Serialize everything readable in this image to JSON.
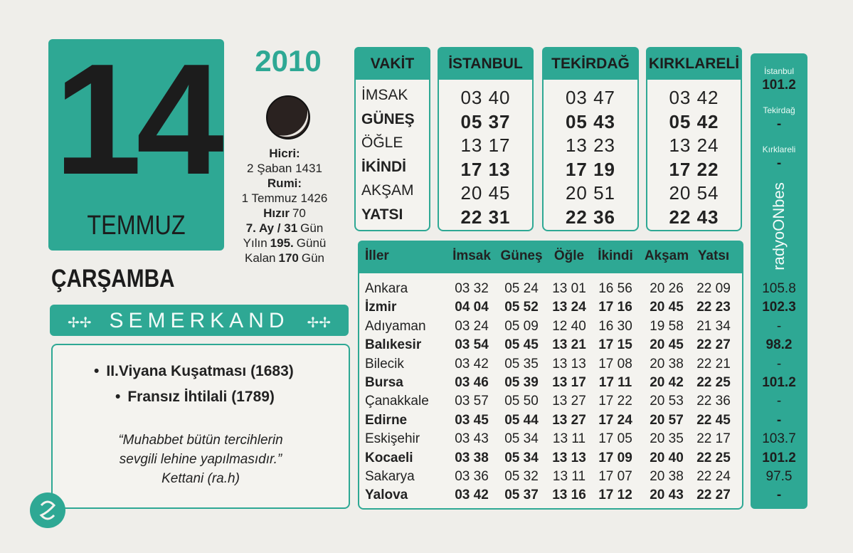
{
  "day": "14",
  "month": "TEMMUZ",
  "year": "2010",
  "weekday": "ÇARŞAMBA",
  "info": [
    [
      "Hicri:"
    ],
    [
      "2 Şaban 1431"
    ],
    [
      "Rumi:"
    ],
    [
      "1 Temmuz 1426"
    ],
    [
      "Hızır",
      "70"
    ],
    [
      "7. Ay / 31",
      "Gün"
    ],
    [
      "Yılın",
      "195.",
      "Günü"
    ],
    [
      "Kalan",
      "170",
      "Gün"
    ]
  ],
  "brand": "SEMERKAND",
  "events": [
    "II.Viyana Kuşatması (1683)",
    "Fransız İhtilali (1789)"
  ],
  "quote": {
    "lines": [
      "“Muhabbet bütün tercihlerin",
      "sevgili lehine yapılmasıdır.”"
    ],
    "author": "Kettani (ra.h)"
  },
  "city_table": {
    "headers": [
      "VAKİT",
      "İSTANBUL",
      "TEKİRDAĞ",
      "KIRKLARELİ"
    ],
    "rows": [
      [
        "İMSAK",
        "03 40",
        "03 47",
        "03 42"
      ],
      [
        "GÜNEŞ",
        "05 37",
        "05 43",
        "05 42"
      ],
      [
        "ÖĞLE",
        "13 17",
        "13 23",
        "13 24"
      ],
      [
        "İKİNDİ",
        "17 13",
        "17 19",
        "17 22"
      ],
      [
        "AKŞAM",
        "20 45",
        "20 51",
        "20 54"
      ],
      [
        "YATSI",
        "22 31",
        "22 36",
        "22 43"
      ]
    ]
  },
  "province_table": {
    "headers": [
      "İller",
      "İmsak",
      "Güneş",
      "Öğle",
      "İkindi",
      "Akşam",
      "Yatsı"
    ],
    "rows": [
      [
        "Ankara",
        "03 32",
        "05 24",
        "13 01",
        "16 56",
        "20 26",
        "22 09"
      ],
      [
        "İzmir",
        "04 04",
        "05 52",
        "13 24",
        "17 16",
        "20 45",
        "22 23"
      ],
      [
        "Adıyaman",
        "03 24",
        "05 09",
        "12 40",
        "16 30",
        "19 58",
        "21 34"
      ],
      [
        "Balıkesir",
        "03 54",
        "05 45",
        "13 21",
        "17 15",
        "20 45",
        "22 27"
      ],
      [
        "Bilecik",
        "03 42",
        "05 35",
        "13 13",
        "17 08",
        "20 38",
        "22 21"
      ],
      [
        "Bursa",
        "03 46",
        "05 39",
        "13 17",
        "17 11",
        "20 42",
        "22 25"
      ],
      [
        "Çanakkale",
        "03 57",
        "05 50",
        "13 27",
        "17 22",
        "20 53",
        "22 36"
      ],
      [
        "Edirne",
        "03 45",
        "05 44",
        "13 27",
        "17 24",
        "20 57",
        "22 45"
      ],
      [
        "Eskişehir",
        "03 43",
        "05 34",
        "13 11",
        "17 05",
        "20 35",
        "22 17"
      ],
      [
        "Kocaeli",
        "03 38",
        "05 34",
        "13 13",
        "17 09",
        "20 40",
        "22 25"
      ],
      [
        "Sakarya",
        "03 36",
        "05 32",
        "13 11",
        "17 07",
        "20 38",
        "22 24"
      ],
      [
        "Yalova",
        "03 42",
        "05 37",
        "13 16",
        "17 12",
        "20 43",
        "22 27"
      ]
    ]
  },
  "radio": {
    "logo": "radyoONbes",
    "top": [
      {
        "city": "İstanbul",
        "freq": "101.2"
      },
      {
        "city": "Tekirdağ",
        "freq": "-"
      },
      {
        "city": "Kırklareli",
        "freq": "-"
      }
    ],
    "freqs": [
      "105.8",
      "102.3",
      "-",
      "98.2",
      "-",
      "101.2",
      "-",
      "-",
      "103.7",
      "101.2",
      "97.5",
      "-"
    ]
  }
}
